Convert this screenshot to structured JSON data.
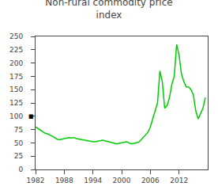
{
  "chart_data": {
    "type": "line",
    "title": "Non-rural commodity price\nindex",
    "x": [
      1982.0,
      1982.5,
      1983.0,
      1983.5,
      1984.0,
      1984.5,
      1985.0,
      1985.5,
      1986.0,
      1986.5,
      1987.0,
      1987.5,
      1988.0,
      1988.5,
      1989.0,
      1989.5,
      1990.0,
      1990.5,
      1991.0,
      1991.5,
      1992.0,
      1992.5,
      1993.0,
      1993.5,
      1994.0,
      1994.5,
      1995.0,
      1995.5,
      1996.0,
      1996.5,
      1997.0,
      1997.5,
      1998.0,
      1998.5,
      1999.0,
      1999.5,
      2000.0,
      2000.5,
      2001.0,
      2001.5,
      2002.0,
      2002.5,
      2003.0,
      2003.5,
      2004.0,
      2004.5,
      2005.0,
      2005.5,
      2006.0,
      2006.5,
      2007.0,
      2007.5,
      2008.0,
      2008.5,
      2009.0,
      2009.5,
      2010.0,
      2010.5,
      2011.0,
      2011.5,
      2012.0,
      2012.5,
      2013.0,
      2013.5,
      2014.0,
      2014.5,
      2015.0,
      2015.5,
      2016.0,
      2016.5,
      2017.0,
      2017.5
    ],
    "values": [
      80,
      77,
      74,
      71,
      68,
      67,
      65,
      63,
      60,
      57,
      56,
      57,
      58,
      59,
      60,
      59,
      60,
      58,
      57,
      56,
      55,
      54,
      54,
      53,
      52,
      52,
      53,
      54,
      55,
      54,
      53,
      52,
      50,
      49,
      48,
      49,
      50,
      51,
      52,
      50,
      48,
      49,
      50,
      51,
      55,
      60,
      65,
      70,
      80,
      95,
      110,
      125,
      185,
      165,
      115,
      120,
      135,
      160,
      175,
      235,
      215,
      180,
      165,
      155,
      155,
      150,
      140,
      110,
      95,
      105,
      115,
      135
    ],
    "color": "#00CC00",
    "xlim": [
      1982,
      2018
    ],
    "xticks": [
      1982,
      1988,
      1994,
      2000,
      2006,
      2012
    ],
    "ylim": [
      0,
      250
    ],
    "yticks": [
      0,
      25,
      50,
      75,
      100,
      125,
      150,
      175,
      200,
      225,
      250
    ],
    "annotations": [
      {
        "text": "■",
        "x": 1982,
        "y": 100
      }
    ],
    "grid": false
  }
}
